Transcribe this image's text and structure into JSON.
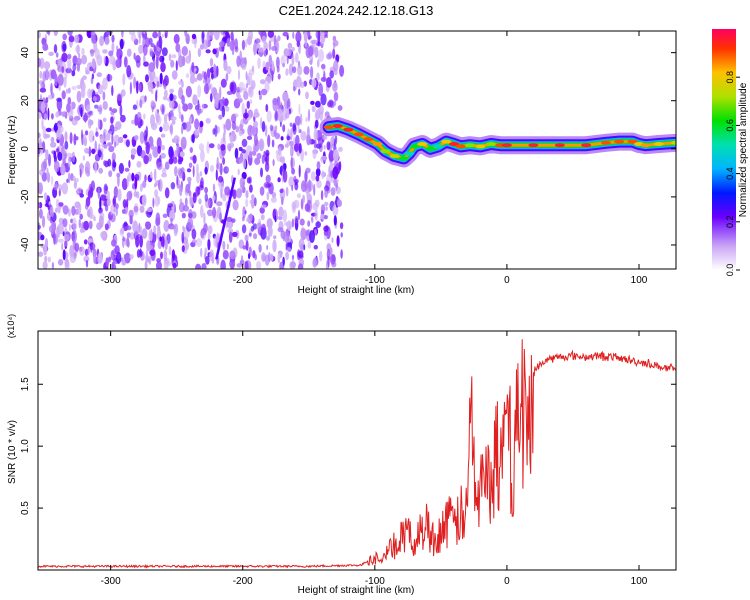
{
  "title": "C2E1.2024.242.12.18.G13",
  "colorbar": {
    "label": "Normalized spectral amplitude",
    "ticks": [
      "0.0",
      "0.2",
      "0.4",
      "0.6",
      "0.8"
    ],
    "tick_values": [
      0.0,
      0.2,
      0.4,
      0.6,
      0.8
    ],
    "range": [
      0,
      1
    ]
  },
  "colors": {
    "series_line": "#e02020",
    "noise": "#7a20f0",
    "ridge_core": "#e02020"
  },
  "chart_data": [
    {
      "type": "heatmap",
      "xlabel": "Height of straight line (km)",
      "ylabel": "Frequency (Hz)",
      "xlim": [
        -355,
        128
      ],
      "ylim": [
        -50,
        49
      ],
      "xticks": [
        -300,
        -200,
        -100,
        0,
        100
      ],
      "xtick_labels": [
        "-300",
        "-200",
        "-100",
        "0",
        "100"
      ],
      "yticks": [
        -40,
        -20,
        0,
        20,
        40
      ],
      "ytick_labels": [
        "-40",
        "-20",
        "0",
        "20",
        "40"
      ],
      "noise_region_x": [
        -355,
        -125
      ],
      "ridge": {
        "x": [
          -135,
          -128,
          -120,
          -112,
          -105,
          -98,
          -92,
          -85,
          -78,
          -74,
          -70,
          -64,
          -58,
          -52,
          -46,
          -40,
          -35,
          -28,
          -20,
          -12,
          -5,
          0,
          20,
          40,
          60,
          75,
          85,
          95,
          100,
          105,
          115,
          128
        ],
        "y": [
          9,
          9.5,
          8,
          6,
          4,
          2,
          -1,
          -3,
          -4,
          -2,
          1,
          2,
          0,
          1,
          3,
          2,
          1,
          1.5,
          1,
          2,
          1.5,
          1.5,
          1.5,
          1.5,
          1.5,
          2.5,
          3,
          3,
          2,
          1.5,
          2,
          2.5
        ],
        "amplitude": [
          0.9,
          0.95,
          0.95,
          0.9,
          0.9,
          0.85,
          0.7,
          0.75,
          0.6,
          0.5,
          0.6,
          0.8,
          0.6,
          0.5,
          0.8,
          0.95,
          0.9,
          0.7,
          0.8,
          0.7,
          0.9,
          0.95,
          0.95,
          0.95,
          0.95,
          0.9,
          0.9,
          0.9,
          0.8,
          0.85,
          0.8,
          0.75
        ]
      }
    },
    {
      "type": "line",
      "xlabel": "Height of straight line (km)",
      "ylabel": "SNR (10 * v/v)",
      "multiplier": "(x10⁴)",
      "xlim": [
        -355,
        128
      ],
      "ylim": [
        0,
        1.93
      ],
      "xticks": [
        -300,
        -200,
        -100,
        0,
        100
      ],
      "xtick_labels": [
        "-300",
        "-200",
        "-100",
        "0",
        "100"
      ],
      "yticks": [
        0.5,
        1.0,
        1.5
      ],
      "ytick_labels": [
        "0.5",
        "1.0",
        "1.5"
      ],
      "series": [
        {
          "x": [
            -355,
            -300,
            -250,
            -200,
            -150,
            -110,
            -100,
            -95,
            -90,
            -85,
            -80,
            -75,
            -70,
            -65,
            -60,
            -55,
            -50,
            -45,
            -40,
            -35,
            -30,
            -28,
            -25,
            -22,
            -20,
            -15,
            -10,
            -5,
            -3,
            0,
            5,
            10,
            15,
            20,
            25,
            30,
            40,
            50,
            60,
            70,
            80,
            90,
            100,
            110,
            120,
            128
          ],
          "y": [
            0.03,
            0.03,
            0.03,
            0.03,
            0.03,
            0.04,
            0.12,
            0.12,
            0.18,
            0.25,
            0.32,
            0.35,
            0.28,
            0.4,
            0.45,
            0.3,
            0.4,
            0.5,
            0.45,
            0.55,
            0.55,
            1.6,
            1.1,
            0.7,
            0.8,
            0.9,
            1.0,
            1.3,
            1.1,
            1.25,
            1.2,
            1.55,
            1.45,
            1.6,
            1.65,
            1.7,
            1.72,
            1.73,
            1.72,
            1.73,
            1.72,
            1.7,
            1.68,
            1.66,
            1.63,
            1.62
          ]
        }
      ]
    }
  ]
}
